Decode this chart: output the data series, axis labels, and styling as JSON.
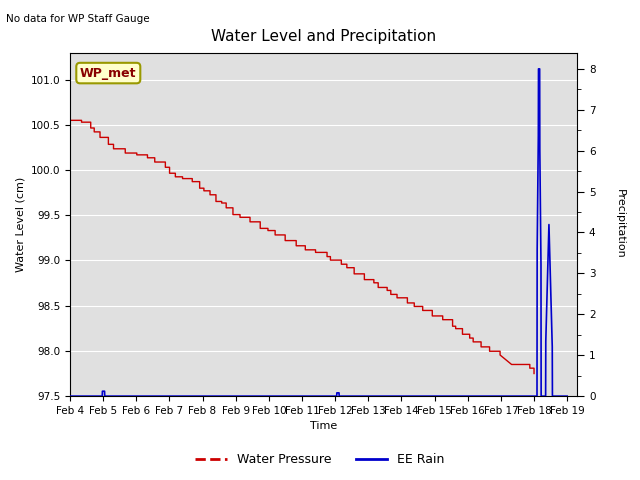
{
  "title": "Water Level and Precipitation",
  "top_left_text": "No data for WP Staff Gauge",
  "xlabel": "Time",
  "ylabel_left": "Water Level (cm)",
  "ylabel_right": "Precipitation",
  "legend_labels": [
    "Water Pressure",
    "EE Rain"
  ],
  "legend_colors": [
    "#cc0000",
    "#0000cc"
  ],
  "annotation_box": "WP_met",
  "annotation_box_facecolor": "#ffffcc",
  "annotation_box_edgecolor": "#999900",
  "background_color": "#ffffff",
  "plot_bg_color": "#e0e0e0",
  "grid_color": "#ffffff",
  "ylim_left": [
    97.5,
    101.3
  ],
  "ylim_right": [
    0.0,
    8.4
  ],
  "yticks_left": [
    97.5,
    98.0,
    98.5,
    99.0,
    99.5,
    100.0,
    100.5,
    101.0
  ],
  "yticks_right": [
    0.0,
    1.0,
    2.0,
    3.0,
    4.0,
    5.0,
    6.0,
    7.0,
    8.0
  ],
  "xlim": [
    0,
    15.3
  ],
  "xtick_positions": [
    0,
    1,
    2,
    3,
    4,
    5,
    6,
    7,
    8,
    9,
    10,
    11,
    12,
    13,
    14,
    15
  ],
  "xtick_labels": [
    "Feb 4",
    "Feb 5",
    "Feb 6",
    "Feb 7",
    "Feb 8",
    "Feb 9",
    "Feb 10",
    "Feb 11",
    "Feb 12",
    "Feb 13",
    "Feb 14",
    "Feb 15",
    "Feb 16",
    "Feb 17",
    "Feb 18",
    "Feb 19"
  ]
}
